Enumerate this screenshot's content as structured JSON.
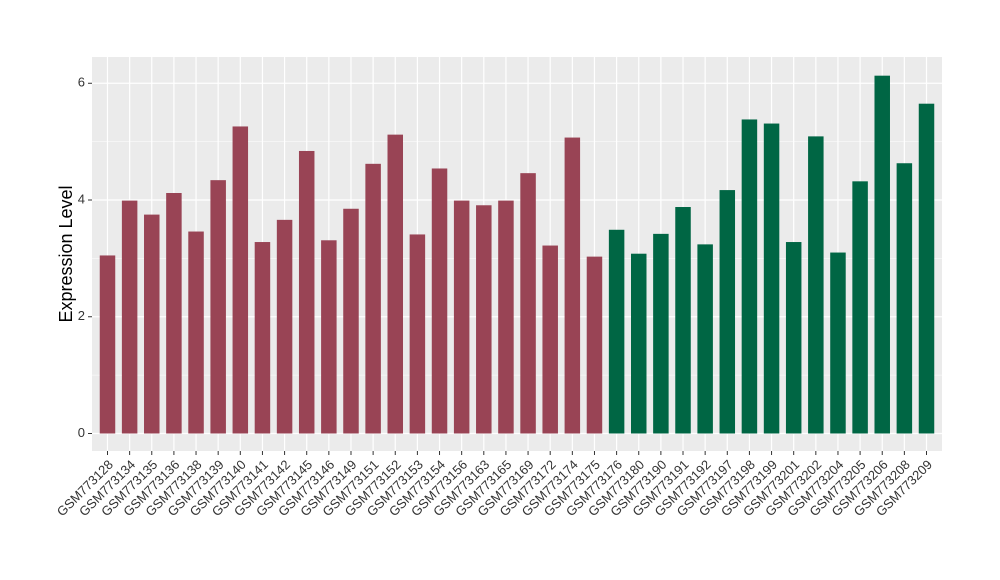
{
  "chart_data": {
    "type": "bar",
    "title": "",
    "xlabel": "",
    "ylabel": "Expression Level",
    "ylim": [
      -0.3,
      6.45
    ],
    "yticks": [
      0,
      2,
      4,
      6
    ],
    "grid": true,
    "legend": "none",
    "categories": [
      "GSM773128",
      "GSM773134",
      "GSM773135",
      "GSM773136",
      "GSM773138",
      "GSM773139",
      "GSM773140",
      "GSM773141",
      "GSM773142",
      "GSM773145",
      "GSM773146",
      "GSM773149",
      "GSM773151",
      "GSM773152",
      "GSM773153",
      "GSM773154",
      "GSM773156",
      "GSM773163",
      "GSM773165",
      "GSM773169",
      "GSM773172",
      "GSM773174",
      "GSM773175",
      "GSM773176",
      "GSM773180",
      "GSM773190",
      "GSM773191",
      "GSM773192",
      "GSM773197",
      "GSM773198",
      "GSM773199",
      "GSM773201",
      "GSM773202",
      "GSM773204",
      "GSM773205",
      "GSM773206",
      "GSM773208",
      "GSM773209"
    ],
    "values": [
      3.05,
      3.99,
      3.75,
      4.12,
      3.46,
      4.34,
      5.26,
      3.28,
      3.66,
      4.84,
      3.31,
      3.85,
      4.62,
      5.12,
      3.41,
      4.54,
      3.99,
      3.91,
      3.99,
      4.46,
      3.22,
      5.07,
      3.03,
      3.49,
      3.08,
      3.42,
      3.88,
      3.24,
      4.17,
      5.38,
      5.31,
      3.28,
      5.09,
      3.1,
      4.32,
      6.13,
      4.63,
      5.65
    ],
    "groups": [
      0,
      0,
      0,
      0,
      0,
      0,
      0,
      0,
      0,
      0,
      0,
      0,
      0,
      0,
      0,
      0,
      0,
      0,
      0,
      0,
      0,
      0,
      0,
      1,
      1,
      1,
      1,
      1,
      1,
      1,
      1,
      1,
      1,
      1,
      1,
      1,
      1,
      1
    ],
    "group_colors": [
      "#994455",
      "#006644"
    ],
    "panel_color": "#ebebeb",
    "grid_color": "#ffffff"
  }
}
